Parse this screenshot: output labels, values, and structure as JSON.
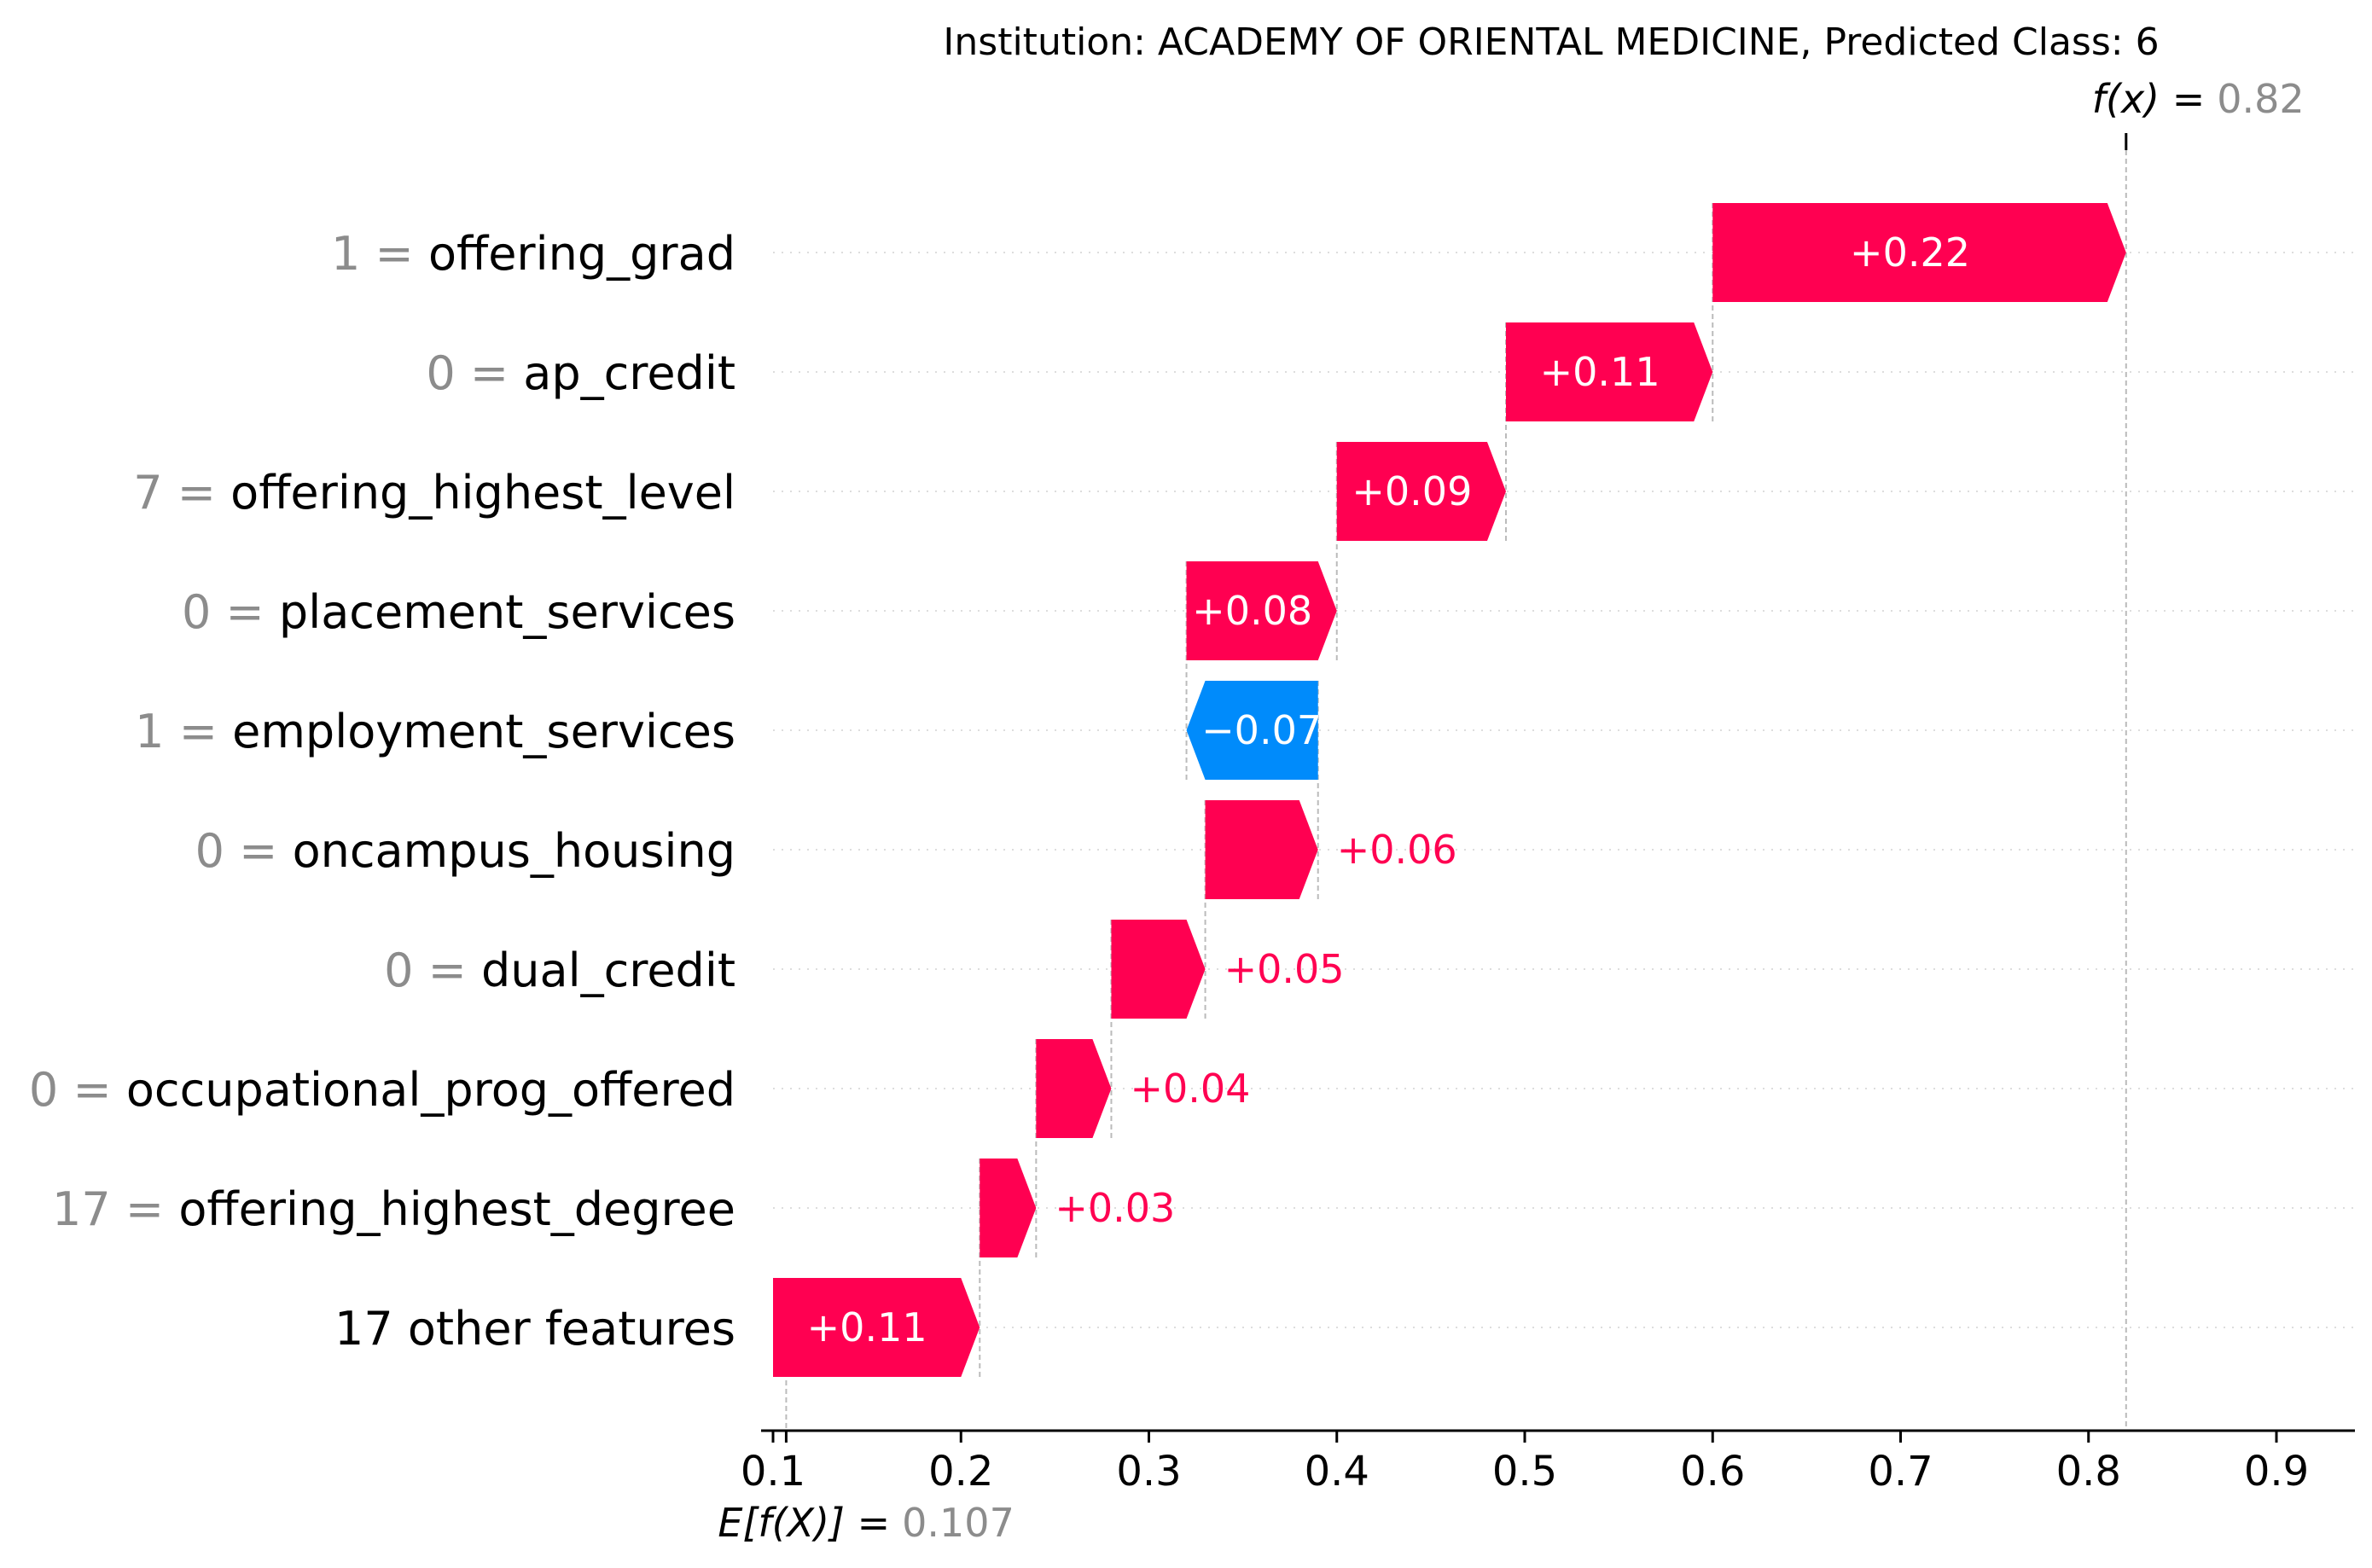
{
  "chart_data": {
    "type": "waterfall",
    "title": "Institution: ACADEMY OF ORIENTAL MEDICINE, Predicted Class: 6",
    "base_value": 0.107,
    "base_value_label": "0.107",
    "base_label_prefix": "E[f(X)] =",
    "output_value": 0.82,
    "output_value_label": "0.82",
    "output_label_prefix": "f(x) =",
    "xlim": [
      0.1,
      0.9
    ],
    "xticks": [
      0.1,
      0.2,
      0.3,
      0.4,
      0.5,
      0.6,
      0.7,
      0.8,
      0.9
    ],
    "xtick_labels": [
      "0.1",
      "0.2",
      "0.3",
      "0.4",
      "0.5",
      "0.6",
      "0.7",
      "0.8",
      "0.9"
    ],
    "features": [
      {
        "value": "1",
        "name": "offering_grad",
        "contribution": 0.22,
        "label": "+0.22"
      },
      {
        "value": "0",
        "name": "ap_credit",
        "contribution": 0.11,
        "label": "+0.11"
      },
      {
        "value": "7",
        "name": "offering_highest_level",
        "contribution": 0.09,
        "label": "+0.09"
      },
      {
        "value": "0",
        "name": "placement_services",
        "contribution": 0.08,
        "label": "+0.08"
      },
      {
        "value": "1",
        "name": "employment_services",
        "contribution": -0.07,
        "label": "−0.07"
      },
      {
        "value": "0",
        "name": "oncampus_housing",
        "contribution": 0.06,
        "label": "+0.06"
      },
      {
        "value": "0",
        "name": "dual_credit",
        "contribution": 0.05,
        "label": "+0.05"
      },
      {
        "value": "0",
        "name": "occupational_prog_offered",
        "contribution": 0.04,
        "label": "+0.04"
      },
      {
        "value": "17",
        "name": "offering_highest_degree",
        "contribution": 0.03,
        "label": "+0.03"
      },
      {
        "value": "",
        "name": "17 other features",
        "contribution": 0.11,
        "label": "+0.11"
      }
    ],
    "colors": {
      "positive": "#ff0051",
      "negative": "#008bfb",
      "muted_text": "#8c8c8c",
      "guide": "#bbbbbb"
    }
  }
}
